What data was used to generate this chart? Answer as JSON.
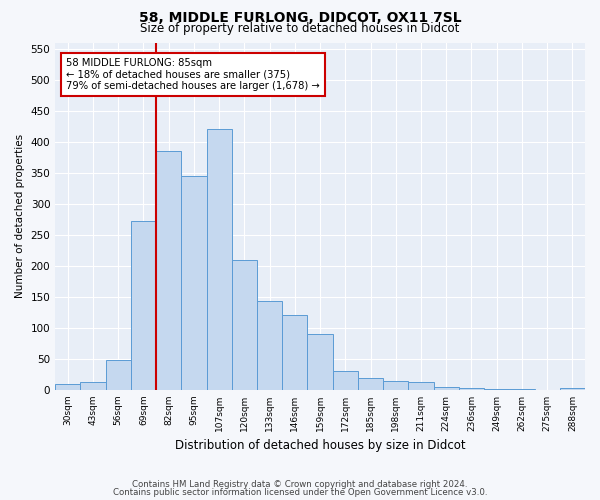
{
  "title1": "58, MIDDLE FURLONG, DIDCOT, OX11 7SL",
  "title2": "Size of property relative to detached houses in Didcot",
  "xlabel": "Distribution of detached houses by size in Didcot",
  "ylabel": "Number of detached properties",
  "categories": [
    "30sqm",
    "43sqm",
    "56sqm",
    "69sqm",
    "82sqm",
    "95sqm",
    "107sqm",
    "120sqm",
    "133sqm",
    "146sqm",
    "159sqm",
    "172sqm",
    "185sqm",
    "198sqm",
    "211sqm",
    "224sqm",
    "236sqm",
    "249sqm",
    "262sqm",
    "275sqm",
    "288sqm"
  ],
  "values": [
    10,
    12,
    48,
    272,
    385,
    345,
    420,
    210,
    143,
    120,
    90,
    30,
    20,
    15,
    12,
    5,
    3,
    2,
    1,
    0,
    3
  ],
  "bar_color": "#c5d8ef",
  "bar_edge_color": "#5b9bd5",
  "vline_x_index": 4,
  "vline_color": "#cc0000",
  "annotation_line1": "58 MIDDLE FURLONG: 85sqm",
  "annotation_line2": "← 18% of detached houses are smaller (375)",
  "annotation_line3": "79% of semi-detached houses are larger (1,678) →",
  "annotation_box_edgecolor": "#cc0000",
  "footer1": "Contains HM Land Registry data © Crown copyright and database right 2024.",
  "footer2": "Contains public sector information licensed under the Open Government Licence v3.0.",
  "ylim": [
    0,
    560
  ],
  "yticks": [
    0,
    50,
    100,
    150,
    200,
    250,
    300,
    350,
    400,
    450,
    500,
    550
  ],
  "plot_bg_color": "#e8eef7",
  "fig_bg_color": "#f5f7fb",
  "grid_color": "#ffffff"
}
